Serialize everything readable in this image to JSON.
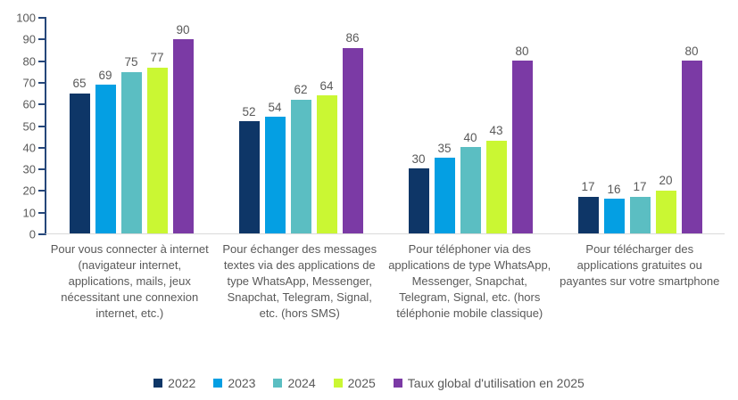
{
  "chart_data": {
    "type": "bar",
    "title": "",
    "categories": [
      "Pour vous connecter à internet (navigateur internet, applications, mails, jeux nécessitant une connexion internet, etc.)",
      "Pour échanger des messages textes via des applications de type WhatsApp, Messenger, Snapchat, Telegram, Signal, etc. (hors SMS)",
      "Pour téléphoner via des applications de type WhatsApp, Messenger, Snapchat, Telegram, Signal, etc. (hors téléphonie mobile classique)",
      "Pour télécharger des applications gratuites ou payantes sur votre smartphone"
    ],
    "series": [
      {
        "name": "2022",
        "color": "#0e3667",
        "values": [
          65,
          52,
          30,
          17
        ]
      },
      {
        "name": "2023",
        "color": "#049fe3",
        "values": [
          69,
          54,
          35,
          16
        ]
      },
      {
        "name": "2024",
        "color": "#5bbec2",
        "values": [
          75,
          62,
          40,
          17
        ]
      },
      {
        "name": "2025",
        "color": "#caf733",
        "values": [
          77,
          64,
          43,
          20
        ]
      },
      {
        "name": "Taux global d'utilisation en 2025",
        "color": "#7b3aa5",
        "values": [
          90,
          86,
          80,
          80
        ]
      }
    ],
    "y_ticks": [
      0,
      10,
      20,
      30,
      40,
      50,
      60,
      70,
      80,
      90,
      100
    ],
    "ylim": [
      0,
      100
    ],
    "xlabel": "",
    "ylabel": "",
    "grid": false,
    "legend_position": "bottom",
    "show_value_labels": true,
    "theme": {
      "axis_line_color": "#26477a",
      "baseline_color": "#d9d9d9",
      "text_color": "#595959",
      "background_color": "#ffffff"
    }
  }
}
